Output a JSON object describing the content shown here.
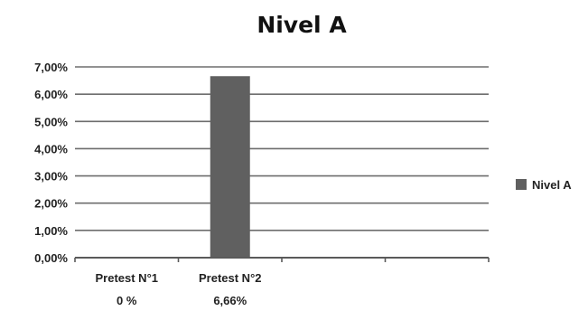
{
  "chart_data": {
    "type": "bar",
    "title": "Nivel A",
    "categories": [
      "Pretest N°1",
      "Pretest N°2",
      "",
      ""
    ],
    "category_sublabels": [
      "0 %",
      "6,66%",
      "",
      ""
    ],
    "series": [
      {
        "name": "Nivel A",
        "values": [
          0,
          6.66,
          null,
          null
        ],
        "color": "#606060"
      }
    ],
    "ylim": [
      0,
      7
    ],
    "yticks": [
      "0,00%",
      "1,00%",
      "2,00%",
      "3,00%",
      "4,00%",
      "5,00%",
      "6,00%",
      "7,00%"
    ],
    "xlabel": "",
    "ylabel": "",
    "grid": true,
    "legend_position": "right",
    "colors": {
      "bar": "#606060",
      "grid": "#6e6e6e",
      "axis": "#5a5a5a"
    }
  }
}
